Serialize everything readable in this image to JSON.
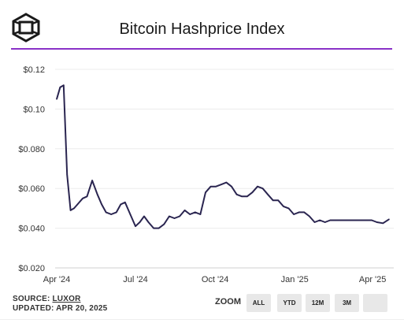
{
  "header": {
    "title": "Bitcoin Hashprice Index",
    "logo_icon": "cube-logo-icon",
    "accent_color": "#8a32c8"
  },
  "chart_data": {
    "type": "line",
    "title": "Bitcoin Hashprice Index",
    "xlabel": "",
    "ylabel": "",
    "ylim": [
      0.02,
      0.12
    ],
    "yticks": [
      "$0.020",
      "$0.040",
      "$0.060",
      "$0.080",
      "$0.10",
      "$0.12"
    ],
    "yticks_values": [
      0.02,
      0.04,
      0.06,
      0.08,
      0.1,
      0.12
    ],
    "xticks": [
      "Apr '24",
      "Jul '24",
      "Oct '24",
      "Jan '25",
      "Apr '25"
    ],
    "xticks_values": [
      "2024-04-01",
      "2024-07-01",
      "2024-10-01",
      "2025-01-01",
      "2025-04-01"
    ],
    "xlim": [
      "2024-04-01",
      "2025-04-20"
    ],
    "grid": true,
    "line_color": "#2a2550",
    "series": [
      {
        "x": [
          "2024-04-01",
          "2024-04-05",
          "2024-04-09",
          "2024-04-13",
          "2024-04-17",
          "2024-04-21",
          "2024-04-25",
          "2024-05-01",
          "2024-05-06",
          "2024-05-12",
          "2024-05-18",
          "2024-05-23",
          "2024-05-28",
          "2024-06-03",
          "2024-06-09",
          "2024-06-14",
          "2024-06-19",
          "2024-06-25",
          "2024-07-01",
          "2024-07-06",
          "2024-07-11",
          "2024-07-16",
          "2024-07-22",
          "2024-07-28",
          "2024-08-03",
          "2024-08-09",
          "2024-08-15",
          "2024-08-21",
          "2024-08-27",
          "2024-09-02",
          "2024-09-08",
          "2024-09-14",
          "2024-09-20",
          "2024-09-26",
          "2024-10-02",
          "2024-10-08",
          "2024-10-14",
          "2024-10-20",
          "2024-10-26",
          "2024-11-01",
          "2024-11-07",
          "2024-11-13",
          "2024-11-19",
          "2024-11-25",
          "2024-12-01",
          "2024-12-07",
          "2024-12-13",
          "2024-12-19",
          "2024-12-25",
          "2024-12-31",
          "2025-01-06",
          "2025-01-12",
          "2025-01-18",
          "2025-01-24",
          "2025-01-30",
          "2025-02-05",
          "2025-02-11",
          "2025-02-17",
          "2025-02-23",
          "2025-03-01",
          "2025-03-07",
          "2025-03-13",
          "2025-03-19",
          "2025-03-25",
          "2025-03-31",
          "2025-04-06",
          "2025-04-13",
          "2025-04-20"
        ],
        "y": [
          0.105,
          0.111,
          0.112,
          0.067,
          0.049,
          0.05,
          0.052,
          0.055,
          0.056,
          0.064,
          0.057,
          0.052,
          0.048,
          0.047,
          0.048,
          0.052,
          0.053,
          0.047,
          0.041,
          0.043,
          0.046,
          0.043,
          0.04,
          0.04,
          0.042,
          0.046,
          0.045,
          0.046,
          0.049,
          0.047,
          0.048,
          0.047,
          0.058,
          0.061,
          0.061,
          0.062,
          0.063,
          0.061,
          0.057,
          0.056,
          0.056,
          0.058,
          0.061,
          0.06,
          0.057,
          0.054,
          0.054,
          0.051,
          0.05,
          0.047,
          0.048,
          0.048,
          0.046,
          0.043,
          0.044,
          0.043,
          0.044,
          0.044,
          0.044,
          0.044,
          0.044,
          0.044,
          0.044,
          0.044,
          0.044,
          0.043,
          0.0425,
          0.0445
        ]
      }
    ]
  },
  "footer": {
    "source_label": "SOURCE:",
    "source_link": "LUXOR",
    "updated": "UPDATED: APR 20, 2025",
    "zoom_label": "ZOOM",
    "zoom_buttons": [
      "ALL",
      "YTD",
      "12M",
      "3M",
      ""
    ]
  }
}
